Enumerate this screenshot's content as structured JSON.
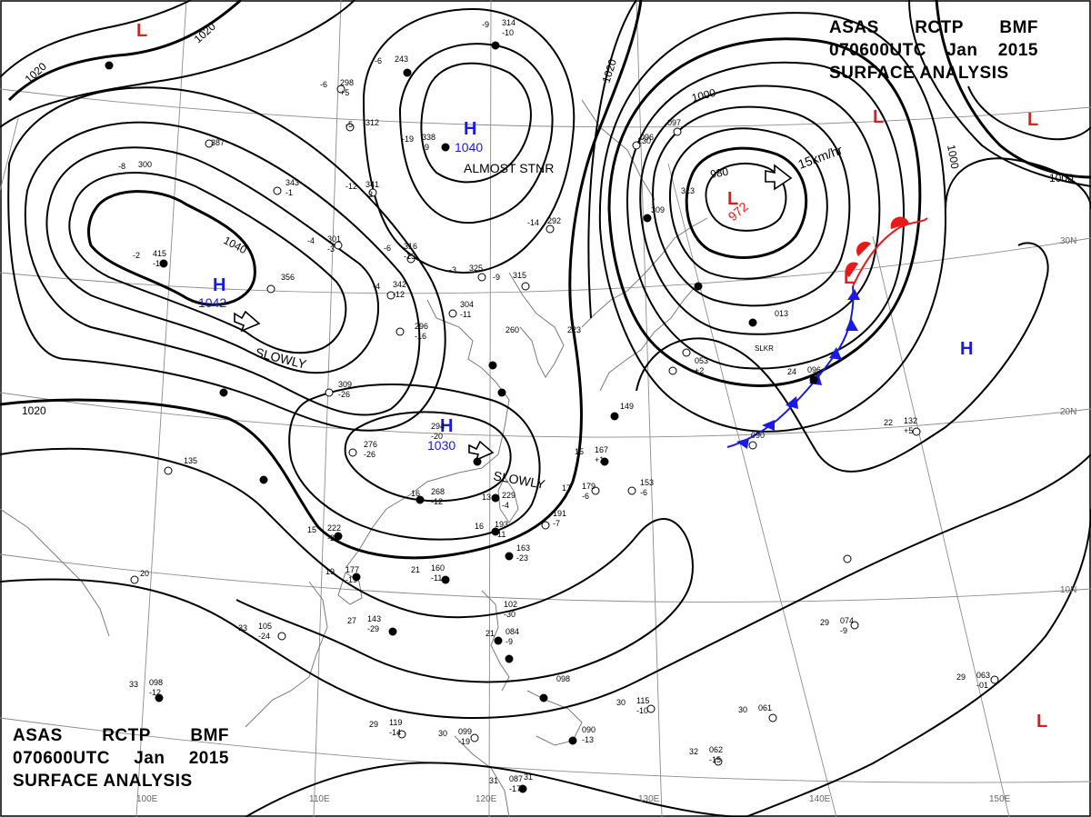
{
  "title": {
    "agency": "ASAS",
    "station": "RCTP",
    "code": "BMF",
    "time": "070600UTC",
    "month": "Jan",
    "year": "2015",
    "product": "SURFACE ANALYSIS"
  },
  "colors": {
    "isobar": "#000000",
    "grid": "#8c8c8c",
    "coast": "#7a7a7a",
    "high": "#1a1ae6",
    "low": "#e61a1a",
    "warm_front": "#e61a1a",
    "cold_front": "#1a1ae6"
  },
  "grid_labels": {
    "longitudes": [
      "100E",
      "110E",
      "120E",
      "130E",
      "140E",
      "150E"
    ],
    "latitudes": [
      "30N",
      "20N",
      "10N"
    ]
  },
  "pressure_systems": [
    {
      "type": "H",
      "pressure": "1040",
      "note": "ALMOST STNR"
    },
    {
      "type": "H",
      "pressure": "1042",
      "movement": "SLOWLY"
    },
    {
      "type": "H",
      "pressure": "1030",
      "movement": "SLOWLY"
    },
    {
      "type": "L",
      "pressure": "972",
      "movement": "15km/hr"
    },
    {
      "type": "H",
      "pressure": ""
    },
    {
      "type": "L",
      "pressure": ""
    },
    {
      "type": "L",
      "pressure": ""
    },
    {
      "type": "L",
      "pressure": ""
    },
    {
      "type": "L",
      "pressure": ""
    },
    {
      "type": "L",
      "pressure": ""
    }
  ],
  "isobar_labels": [
    "1020",
    "1020",
    "1040",
    "1000",
    "980",
    "1020",
    "1020",
    "1000",
    "1000"
  ],
  "fronts": [
    {
      "type": "warm"
    },
    {
      "type": "cold"
    }
  ],
  "station_reports": [
    {
      "temp": "-6",
      "pres": "298",
      "dew": "+5"
    },
    {
      "temp": "-6",
      "pres": "243"
    },
    {
      "temp": "-5",
      "pres": "312"
    },
    {
      "temp": "-19",
      "pres": "338",
      "dew": "-9"
    },
    {
      "temp": "",
      "pres": "387"
    },
    {
      "temp": "",
      "pres": "343",
      "dew": "-1"
    },
    {
      "temp": "-12",
      "pres": "341",
      "dew": "-3"
    },
    {
      "temp": "-4",
      "pres": "301",
      "dew": "-3"
    },
    {
      "temp": "-6",
      "pres": "316",
      "dew": "-13"
    },
    {
      "temp": "-2",
      "pres": "415",
      "dew": "-15"
    },
    {
      "temp": "",
      "pres": "356"
    },
    {
      "temp": "-4",
      "pres": "342",
      "dew": "-12"
    },
    {
      "temp": "-3",
      "pres": "325"
    },
    {
      "temp": "-9",
      "pres": "315"
    },
    {
      "temp": "-14",
      "pres": "292"
    },
    {
      "temp": "",
      "pres": "304",
      "dew": "-11"
    },
    {
      "temp": "",
      "pres": "296",
      "dew": "-16"
    },
    {
      "temp": "",
      "pres": "309",
      "dew": "-26"
    },
    {
      "temp": "",
      "pres": "276",
      "dew": "-26"
    },
    {
      "temp": "",
      "pres": "294",
      "dew": "-20"
    },
    {
      "temp": "16",
      "pres": "268",
      "dew": "-12"
    },
    {
      "temp": "15",
      "pres": "222",
      "dew": "-22"
    },
    {
      "temp": "13",
      "pres": "229",
      "dew": "-4"
    },
    {
      "temp": "16",
      "pres": "193",
      "dew": "-11"
    },
    {
      "temp": "",
      "pres": "191",
      "dew": "-7"
    },
    {
      "temp": "",
      "pres": "163",
      "dew": "-23"
    },
    {
      "temp": "21",
      "pres": "160",
      "dew": "-11"
    },
    {
      "temp": "19",
      "pres": "177",
      "dew": "-19"
    },
    {
      "temp": "27",
      "pres": "143",
      "dew": "-29"
    },
    {
      "temp": "33",
      "pres": "105",
      "dew": "-24"
    },
    {
      "temp": "33",
      "pres": "098",
      "dew": "-12"
    },
    {
      "temp": "29",
      "pres": "119",
      "dew": "-14"
    },
    {
      "temp": "30",
      "pres": "099",
      "dew": "-19"
    },
    {
      "temp": "31",
      "pres": "087",
      "dew": "-17"
    },
    {
      "temp": "",
      "pres": "102",
      "dew": "-30"
    },
    {
      "temp": "21",
      "pres": "084",
      "dew": "-9"
    },
    {
      "temp": "",
      "pres": "098"
    },
    {
      "temp": "",
      "pres": "090",
      "dew": "-13"
    },
    {
      "temp": "30",
      "pres": "115",
      "dew": "-10"
    },
    {
      "temp": "30",
      "pres": "061"
    },
    {
      "temp": "32",
      "pres": "062",
      "dew": "-15"
    },
    {
      "temp": "29",
      "pres": "074",
      "dew": "-9"
    },
    {
      "temp": "29",
      "pres": "063",
      "dew": "-01"
    },
    {
      "temp": "22",
      "pres": "132",
      "dew": "+5"
    },
    {
      "temp": "17",
      "pres": "179",
      "dew": "-6"
    },
    {
      "temp": "",
      "pres": "153",
      "dew": "-6"
    },
    {
      "temp": "15",
      "pres": "167",
      "dew": "+1"
    },
    {
      "temp": "",
      "pres": "149"
    },
    {
      "temp": "",
      "pres": "013"
    },
    {
      "temp": "24",
      "pres": "096"
    },
    {
      "temp": "",
      "pres": "090"
    },
    {
      "temp": "",
      "pres": "053",
      "dew": "+2"
    },
    {
      "temp": "",
      "pres": "309"
    },
    {
      "temp": "",
      "pres": "313"
    },
    {
      "temp": "",
      "pres": "097"
    },
    {
      "temp": "",
      "pres": "096"
    },
    {
      "temp": "",
      "pres": "130"
    },
    {
      "temp": "",
      "pres": "260"
    },
    {
      "temp": "",
      "pres": "223"
    },
    {
      "temp": "-9",
      "pres": "314",
      "dew": "-10"
    },
    {
      "temp": "-8",
      "pres": "300"
    },
    {
      "temp": "",
      "pres": "135"
    },
    {
      "temp": "",
      "pres": "20"
    },
    {
      "temp": "",
      "pres": "31"
    }
  ],
  "place_labels": [
    "SLKR"
  ]
}
